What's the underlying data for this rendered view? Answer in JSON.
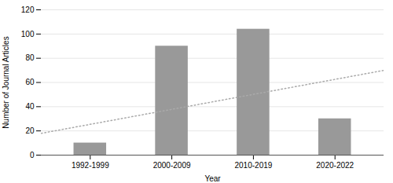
{
  "chart_data": {
    "type": "bar",
    "categories": [
      "1992-1999",
      "2000-2009",
      "2010-2019",
      "2020-2022"
    ],
    "values": [
      10,
      90,
      104,
      30
    ],
    "color": "#999999",
    "xlabel": "Year",
    "ylabel": "Number of Journal Articles",
    "ylim": [
      0,
      120
    ],
    "yticks": [
      0,
      20,
      40,
      60,
      80,
      100,
      120
    ],
    "grid": true,
    "trend_line": {
      "values": [
        18,
        70
      ],
      "color": "#aaaaaa",
      "line_style": "dotted"
    }
  }
}
